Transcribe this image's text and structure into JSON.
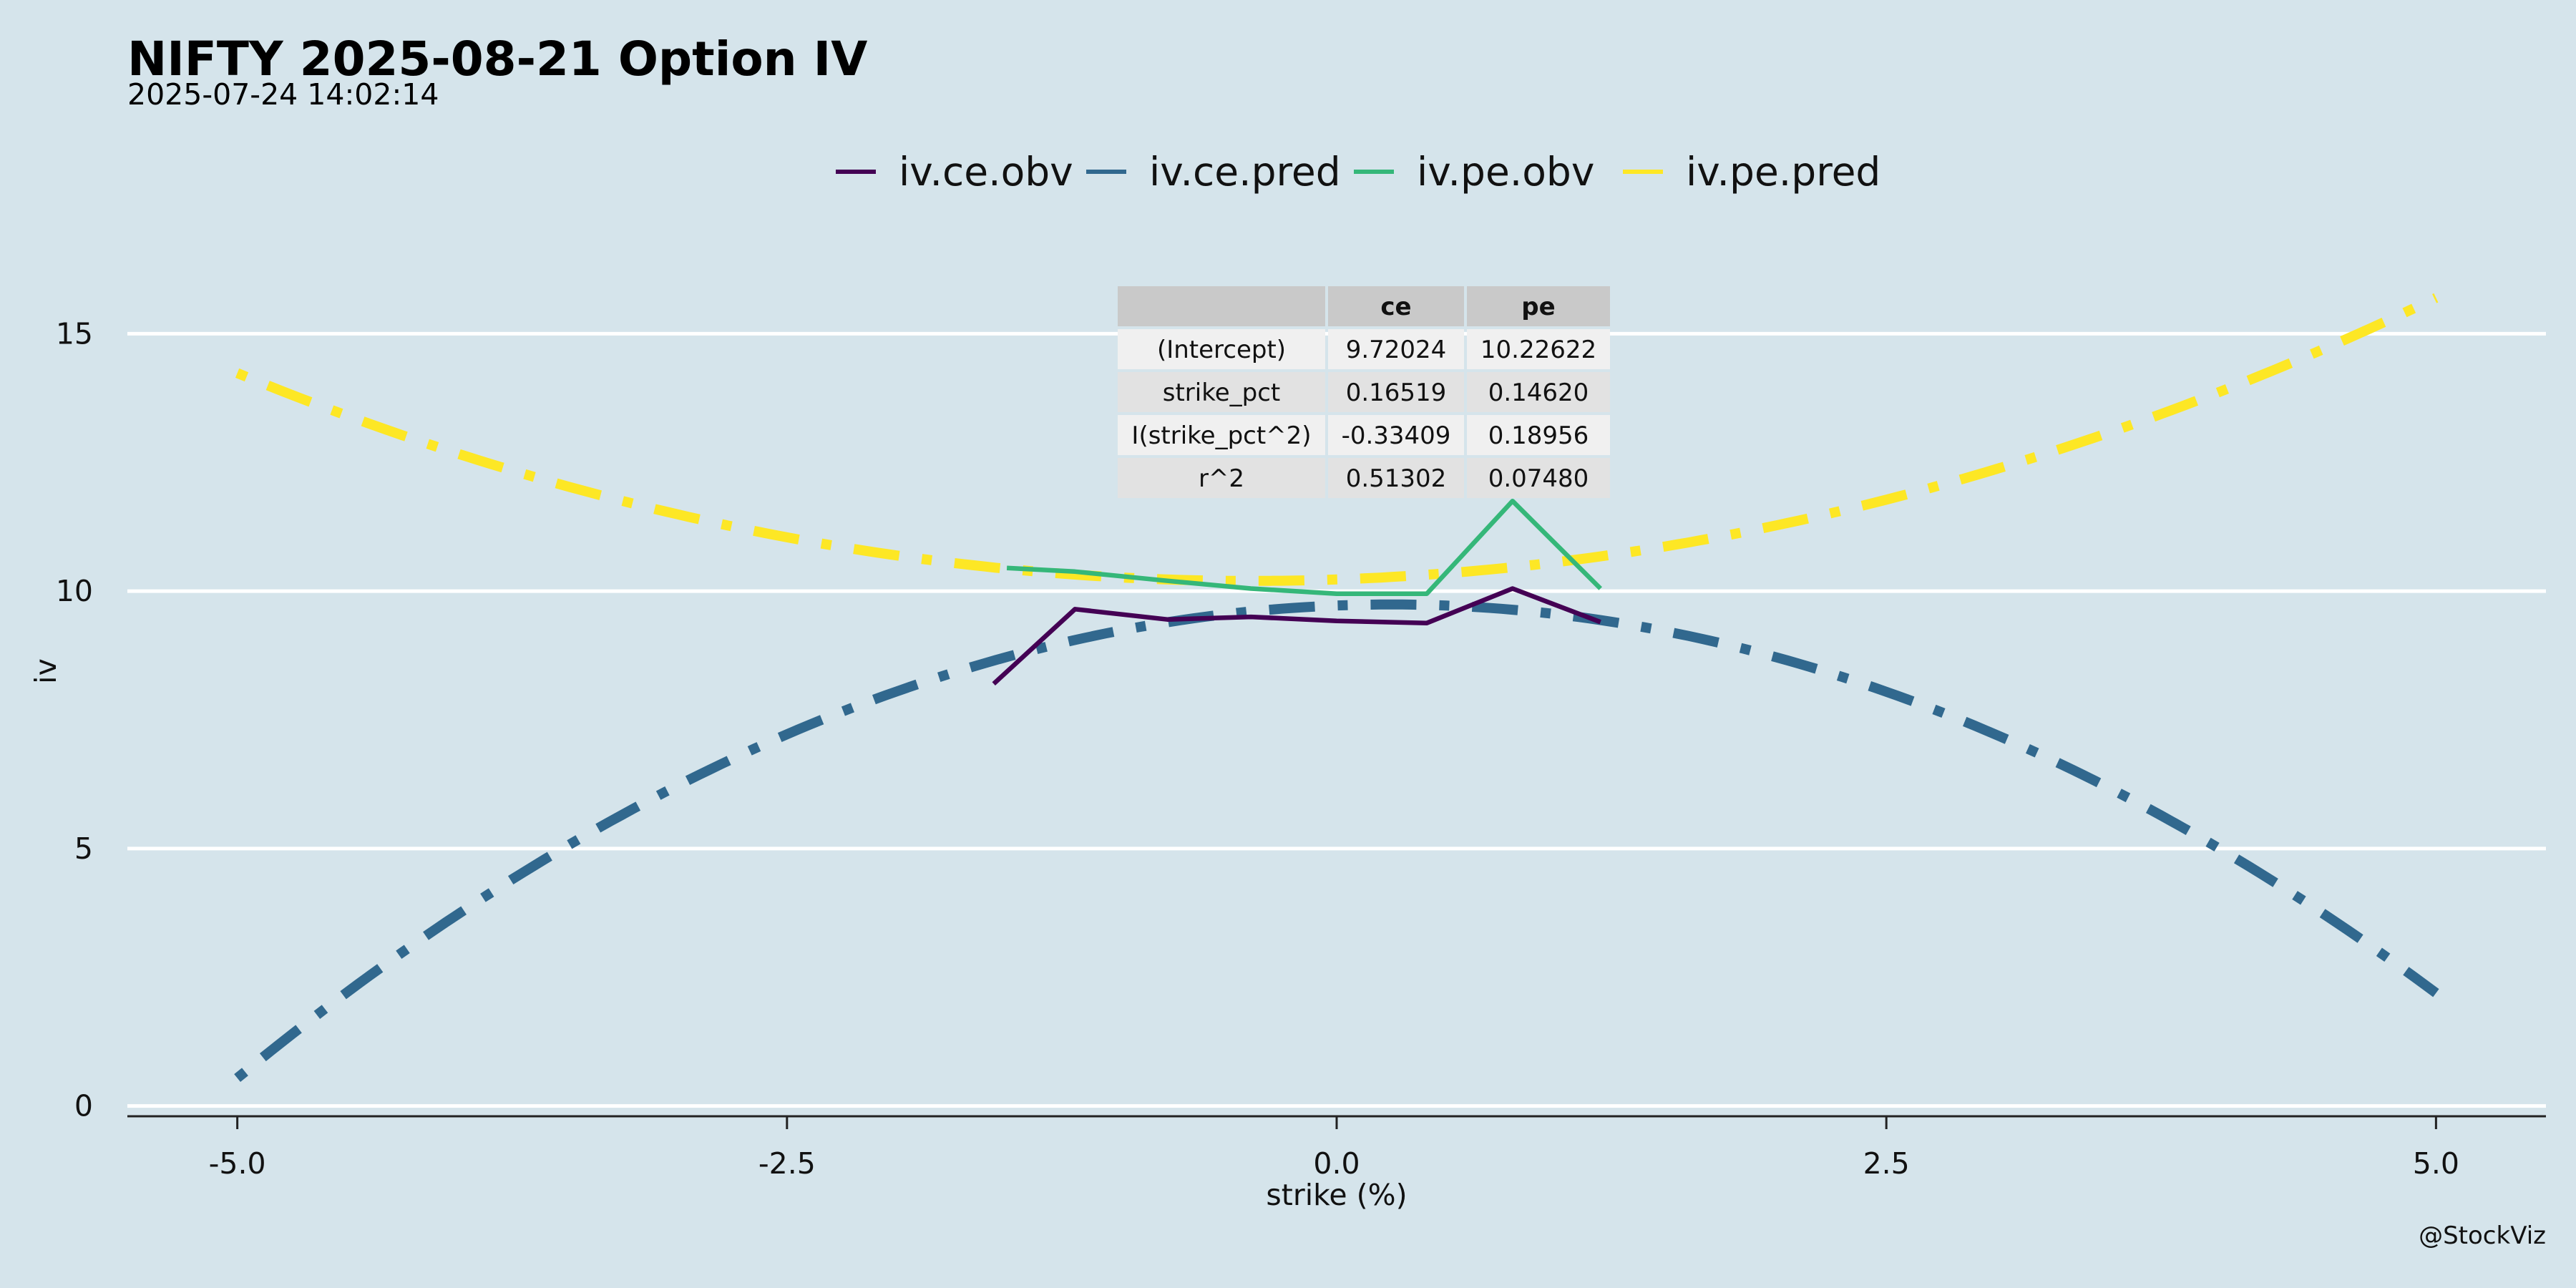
{
  "chart_data": {
    "type": "line",
    "title": "NIFTY 2025-08-21 Option IV",
    "subtitle": "2025-07-24 14:02:14",
    "xlabel": "strike (%)",
    "ylabel": "iv",
    "xlim": [
      -5.5,
      5.5
    ],
    "ylim": [
      -0.2,
      16.2
    ],
    "x_ticks": [
      -5.0,
      -2.5,
      0.0,
      2.5,
      5.0
    ],
    "x_tick_labels": [
      "-5.0",
      "-2.5",
      "0.0",
      "2.5",
      "5.0"
    ],
    "y_ticks": [
      0,
      5,
      10,
      15
    ],
    "y_tick_labels": [
      "0",
      "5",
      "10",
      "15"
    ],
    "grid": "horizontal",
    "legend_position": "top",
    "caption": "@StockViz",
    "series": [
      {
        "name": "iv.ce.obv",
        "color": "#440154",
        "style": "solid",
        "x": [
          -1.56,
          -1.19,
          -0.77,
          -0.39,
          0.0,
          0.41,
          0.8,
          1.2
        ],
        "y": [
          8.2,
          9.65,
          9.45,
          9.5,
          9.42,
          9.38,
          10.05,
          9.4
        ]
      },
      {
        "name": "iv.ce.pred",
        "color": "#31688e",
        "style": "dotdash",
        "formula": "ce"
      },
      {
        "name": "iv.pe.obv",
        "color": "#35b779",
        "style": "solid",
        "x": [
          -1.5,
          -1.19,
          -0.77,
          -0.39,
          0.0,
          0.41,
          0.8,
          1.2
        ],
        "y": [
          10.45,
          10.38,
          10.2,
          10.05,
          9.95,
          9.95,
          11.75,
          10.05
        ]
      },
      {
        "name": "iv.pe.pred",
        "color": "#fde725",
        "style": "dotdash",
        "formula": "pe"
      }
    ],
    "table": {
      "headers": [
        "",
        "ce",
        "pe"
      ],
      "rows": [
        [
          "(Intercept)",
          "9.72024",
          "10.22622"
        ],
        [
          "strike_pct",
          "0.16519",
          "0.14620"
        ],
        [
          "I(strike_pct^2)",
          "-0.33409",
          "0.18956"
        ],
        [
          "r^2",
          "0.51302",
          "0.07480"
        ]
      ]
    },
    "coefficients": {
      "ce": {
        "intercept": 9.72024,
        "b1": 0.16519,
        "b2": -0.33409
      },
      "pe": {
        "intercept": 10.22622,
        "b1": 0.1462,
        "b2": 0.18956
      }
    }
  }
}
